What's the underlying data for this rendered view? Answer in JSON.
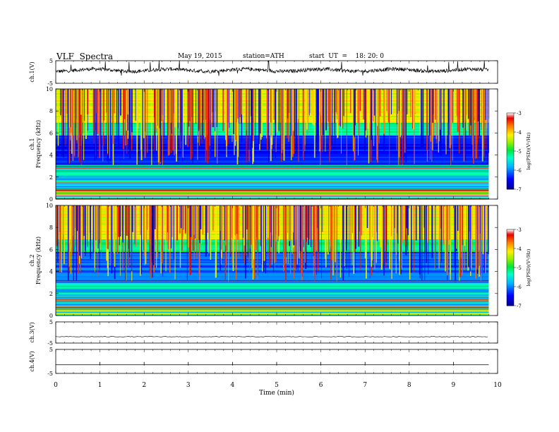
{
  "header": {
    "title": "VLF  Spectra",
    "date": "May 19, 2015",
    "station": "station=ATH",
    "start": "start  UT  =    18: 20: 0"
  },
  "chart_data": [
    {
      "type": "line",
      "ylabel": "ch.1(V)",
      "ylim": [
        -5,
        5
      ],
      "yticks": [
        "5",
        "-5"
      ],
      "series": [
        {
          "x_range": [
            0,
            9.8
          ],
          "baseline": 0.8,
          "noise": "dense spiky"
        }
      ]
    },
    {
      "type": "heatmap",
      "ylabel": "ch.1\nFrequency  (kHz)",
      "ylim": [
        0,
        10
      ],
      "yticks": [
        "0",
        "2",
        "4",
        "6",
        "8",
        "10"
      ],
      "x_range": [
        0,
        9.8
      ],
      "colorbar": {
        "label": "log(PSD)(V²/Hz)",
        "range": [
          -7,
          -3
        ],
        "ticks": [
          "-3",
          "-4",
          "-5",
          "-6",
          "-7"
        ]
      }
    },
    {
      "type": "heatmap",
      "ylabel": "ch.2\nFrequency  (kHz)",
      "ylim": [
        0,
        10
      ],
      "yticks": [
        "0",
        "2",
        "4",
        "6",
        "8",
        "10"
      ],
      "x_range": [
        0,
        9.8
      ],
      "colorbar": {
        "label": "log(PSD)(V²/Hz)",
        "range": [
          -7,
          -3
        ],
        "ticks": [
          "-3",
          "-4",
          "-5",
          "-6",
          "-7"
        ]
      }
    },
    {
      "type": "line",
      "ylabel": "ch.3(V)",
      "ylim": [
        -5,
        5
      ],
      "yticks": [
        "5",
        "-5"
      ],
      "series": [
        {
          "x_range": [
            0,
            9.8
          ],
          "baseline": -2,
          "noise": "small"
        }
      ]
    },
    {
      "type": "line",
      "ylabel": "ch.4(V)",
      "ylim": [
        -5,
        5
      ],
      "yticks": [
        "5",
        "-5"
      ],
      "series": [
        {
          "x_range": [
            0,
            9.8
          ],
          "baseline": -1.4,
          "spikes_at_min": [
            1,
            2,
            3,
            4,
            5,
            6,
            7,
            8,
            9
          ]
        }
      ]
    }
  ],
  "xaxis": {
    "label": "Time  (min)",
    "xlim": [
      0,
      10
    ],
    "ticks": [
      "0",
      "1",
      "2",
      "3",
      "4",
      "5",
      "6",
      "7",
      "8",
      "9",
      "10"
    ]
  }
}
